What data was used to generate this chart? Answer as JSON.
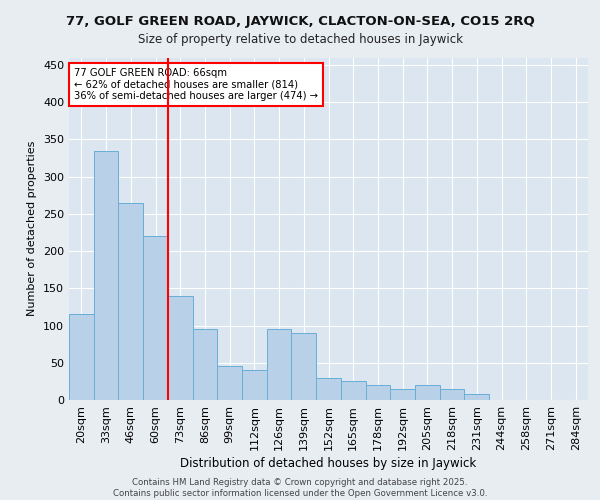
{
  "title1": "77, GOLF GREEN ROAD, JAYWICK, CLACTON-ON-SEA, CO15 2RQ",
  "title2": "Size of property relative to detached houses in Jaywick",
  "xlabel": "Distribution of detached houses by size in Jaywick",
  "ylabel": "Number of detached properties",
  "categories": [
    "20sqm",
    "33sqm",
    "46sqm",
    "60sqm",
    "73sqm",
    "86sqm",
    "99sqm",
    "112sqm",
    "126sqm",
    "139sqm",
    "152sqm",
    "165sqm",
    "178sqm",
    "192sqm",
    "205sqm",
    "218sqm",
    "231sqm",
    "244sqm",
    "258sqm",
    "271sqm",
    "284sqm"
  ],
  "values": [
    115,
    335,
    265,
    220,
    140,
    95,
    45,
    40,
    95,
    90,
    30,
    25,
    20,
    15,
    20,
    15,
    8,
    0,
    0,
    0,
    0
  ],
  "bar_color": "#b8d0e8",
  "bar_edge_color": "#6aaed6",
  "background_color": "#dce6f0",
  "grid_color": "#ffffff",
  "vline_x": 3.5,
  "vline_color": "red",
  "annotation_text": "77 GOLF GREEN ROAD: 66sqm\n← 62% of detached houses are smaller (814)\n36% of semi-detached houses are larger (474) →",
  "annotation_box_color": "white",
  "annotation_box_edge": "red",
  "ylim": [
    0,
    460
  ],
  "yticks": [
    0,
    50,
    100,
    150,
    200,
    250,
    300,
    350,
    400,
    450
  ],
  "footer": "Contains HM Land Registry data © Crown copyright and database right 2025.\nContains public sector information licensed under the Open Government Licence v3.0.",
  "fig_bg": "#e8edf2"
}
